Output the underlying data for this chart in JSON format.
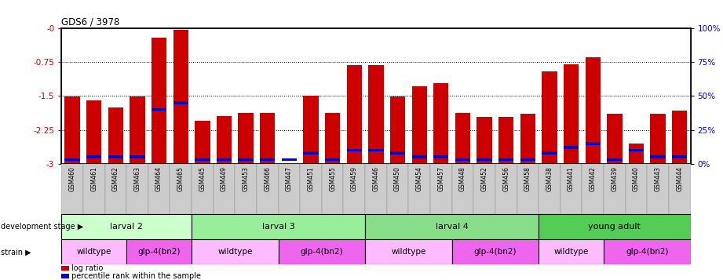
{
  "title": "GDS6 / 3978",
  "samples": [
    "GSM460",
    "GSM461",
    "GSM462",
    "GSM463",
    "GSM464",
    "GSM465",
    "GSM445",
    "GSM449",
    "GSM453",
    "GSM466",
    "GSM447",
    "GSM451",
    "GSM455",
    "GSM459",
    "GSM446",
    "GSM450",
    "GSM454",
    "GSM457",
    "GSM448",
    "GSM452",
    "GSM456",
    "GSM458",
    "GSM438",
    "GSM441",
    "GSM442",
    "GSM439",
    "GSM440",
    "GSM443",
    "GSM444"
  ],
  "log_ratio": [
    -1.52,
    -1.6,
    -1.75,
    -1.52,
    -0.22,
    -0.04,
    -2.05,
    -1.95,
    -1.87,
    -1.87,
    -3.0,
    -1.5,
    -1.87,
    -0.82,
    -0.82,
    -1.52,
    -1.28,
    -1.22,
    -1.87,
    -1.97,
    -1.97,
    -1.9,
    -0.95,
    -0.8,
    -0.65,
    -1.9,
    -2.55,
    -1.9,
    -1.82
  ],
  "percentile": [
    3,
    5,
    5,
    5,
    40,
    45,
    3,
    3,
    3,
    3,
    3,
    8,
    3,
    10,
    10,
    8,
    5,
    5,
    3,
    3,
    3,
    3,
    8,
    12,
    15,
    3,
    10,
    5,
    5
  ],
  "bar_color": "#cc0000",
  "percentile_color": "#0000cc",
  "dev_stages": [
    {
      "label": "larval 2",
      "start": 0,
      "end": 6,
      "color": "#ccffcc"
    },
    {
      "label": "larval 3",
      "start": 6,
      "end": 14,
      "color": "#99ee99"
    },
    {
      "label": "larval 4",
      "start": 14,
      "end": 22,
      "color": "#88dd88"
    },
    {
      "label": "young adult",
      "start": 22,
      "end": 29,
      "color": "#55cc55"
    }
  ],
  "strains": [
    {
      "label": "wildtype",
      "start": 0,
      "end": 3,
      "color": "#ffbbff"
    },
    {
      "label": "glp-4(bn2)",
      "start": 3,
      "end": 6,
      "color": "#ee66ee"
    },
    {
      "label": "wildtype",
      "start": 6,
      "end": 10,
      "color": "#ffbbff"
    },
    {
      "label": "glp-4(bn2)",
      "start": 10,
      "end": 14,
      "color": "#ee66ee"
    },
    {
      "label": "wildtype",
      "start": 14,
      "end": 18,
      "color": "#ffbbff"
    },
    {
      "label": "glp-4(bn2)",
      "start": 18,
      "end": 22,
      "color": "#ee66ee"
    },
    {
      "label": "wildtype",
      "start": 22,
      "end": 25,
      "color": "#ffbbff"
    },
    {
      "label": "glp-4(bn2)",
      "start": 25,
      "end": 29,
      "color": "#ee66ee"
    }
  ],
  "ylim_left": [
    -3.0,
    0.0
  ],
  "ylim_right": [
    0,
    100
  ],
  "yticks_left": [
    0,
    -0.75,
    -1.5,
    -2.25,
    -3.0
  ],
  "yticks_right": [
    100,
    75,
    50,
    25,
    0
  ],
  "ytick_labels_left": [
    "-0",
    "-0.75",
    "-1.5",
    "-2.25",
    "-3"
  ],
  "ytick_labels_right": [
    "100%",
    "75%",
    "50%",
    "25%",
    "0%"
  ],
  "bar_width": 0.7,
  "xtick_bg": "#dddddd",
  "left_label_color": "#cc0000",
  "right_label_color": "#0000cc"
}
